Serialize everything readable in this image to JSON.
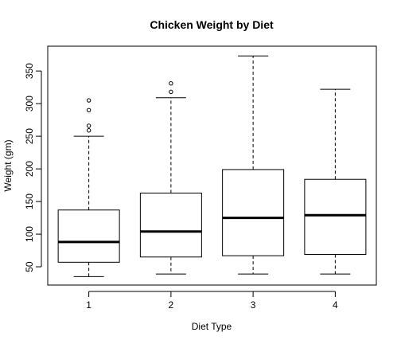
{
  "chart_data": {
    "type": "box",
    "title": "Chicken Weight by Diet",
    "xlabel": "Diet Type",
    "ylabel": "Weight (gm)",
    "categories": [
      "1",
      "2",
      "3",
      "4"
    ],
    "ylim": [
      22,
      388
    ],
    "yticks": [
      50,
      100,
      150,
      200,
      250,
      300,
      350
    ],
    "boxes": [
      {
        "category": "1",
        "whisker_low": 35,
        "q1": 57,
        "median": 88,
        "q3": 137,
        "whisker_high": 250,
        "outliers": [
          259,
          266,
          290,
          305
        ]
      },
      {
        "category": "2",
        "whisker_low": 39,
        "q1": 65,
        "median": 104,
        "q3": 163,
        "whisker_high": 309,
        "outliers": [
          318,
          331
        ]
      },
      {
        "category": "3",
        "whisker_low": 39,
        "q1": 67,
        "median": 125,
        "q3": 199,
        "whisker_high": 373,
        "outliers": []
      },
      {
        "category": "4",
        "whisker_low": 39,
        "q1": 69,
        "median": 129,
        "q3": 184,
        "whisker_high": 322,
        "outliers": []
      }
    ],
    "grid": false,
    "legend": "none"
  }
}
